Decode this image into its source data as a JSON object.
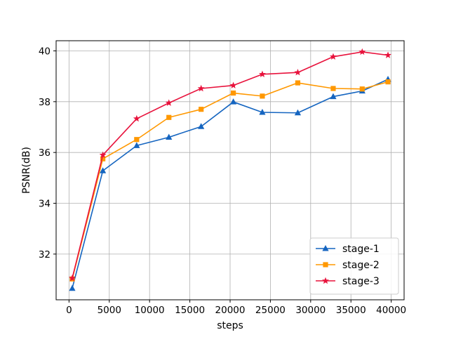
{
  "chart_data": {
    "type": "line",
    "xlabel": "steps",
    "ylabel": "PSNR(dB)",
    "xlim": [
      -1600,
      41600
    ],
    "ylim": [
      30.2,
      40.4
    ],
    "xticks": [
      0,
      5000,
      10000,
      15000,
      20000,
      25000,
      30000,
      35000,
      40000
    ],
    "yticks": [
      32,
      34,
      36,
      38,
      40
    ],
    "grid": true,
    "legend_position": "lower-right",
    "series": [
      {
        "name": "stage-1",
        "color": "#1565c0",
        "marker": "triangle",
        "x": [
          400,
          4200,
          8400,
          12400,
          16400,
          20400,
          24000,
          28400,
          32800,
          36400,
          39600
        ],
        "y": [
          30.65,
          35.28,
          36.27,
          36.6,
          37.02,
          37.99,
          37.58,
          37.56,
          38.2,
          38.42,
          38.88
        ]
      },
      {
        "name": "stage-2",
        "color": "#ff9800",
        "marker": "square",
        "x": [
          400,
          4200,
          8400,
          12400,
          16400,
          20400,
          24000,
          28400,
          32800,
          36400,
          39600
        ],
        "y": [
          31.02,
          35.75,
          36.51,
          37.38,
          37.7,
          38.34,
          38.22,
          38.74,
          38.52,
          38.5,
          38.78
        ]
      },
      {
        "name": "stage-3",
        "color": "#e8123c",
        "marker": "star",
        "x": [
          400,
          4200,
          8400,
          12400,
          16400,
          20400,
          24000,
          28400,
          32800,
          36400,
          39600
        ],
        "y": [
          31.05,
          35.9,
          37.33,
          37.95,
          38.52,
          38.64,
          39.08,
          39.15,
          39.77,
          39.96,
          39.83
        ]
      }
    ]
  }
}
